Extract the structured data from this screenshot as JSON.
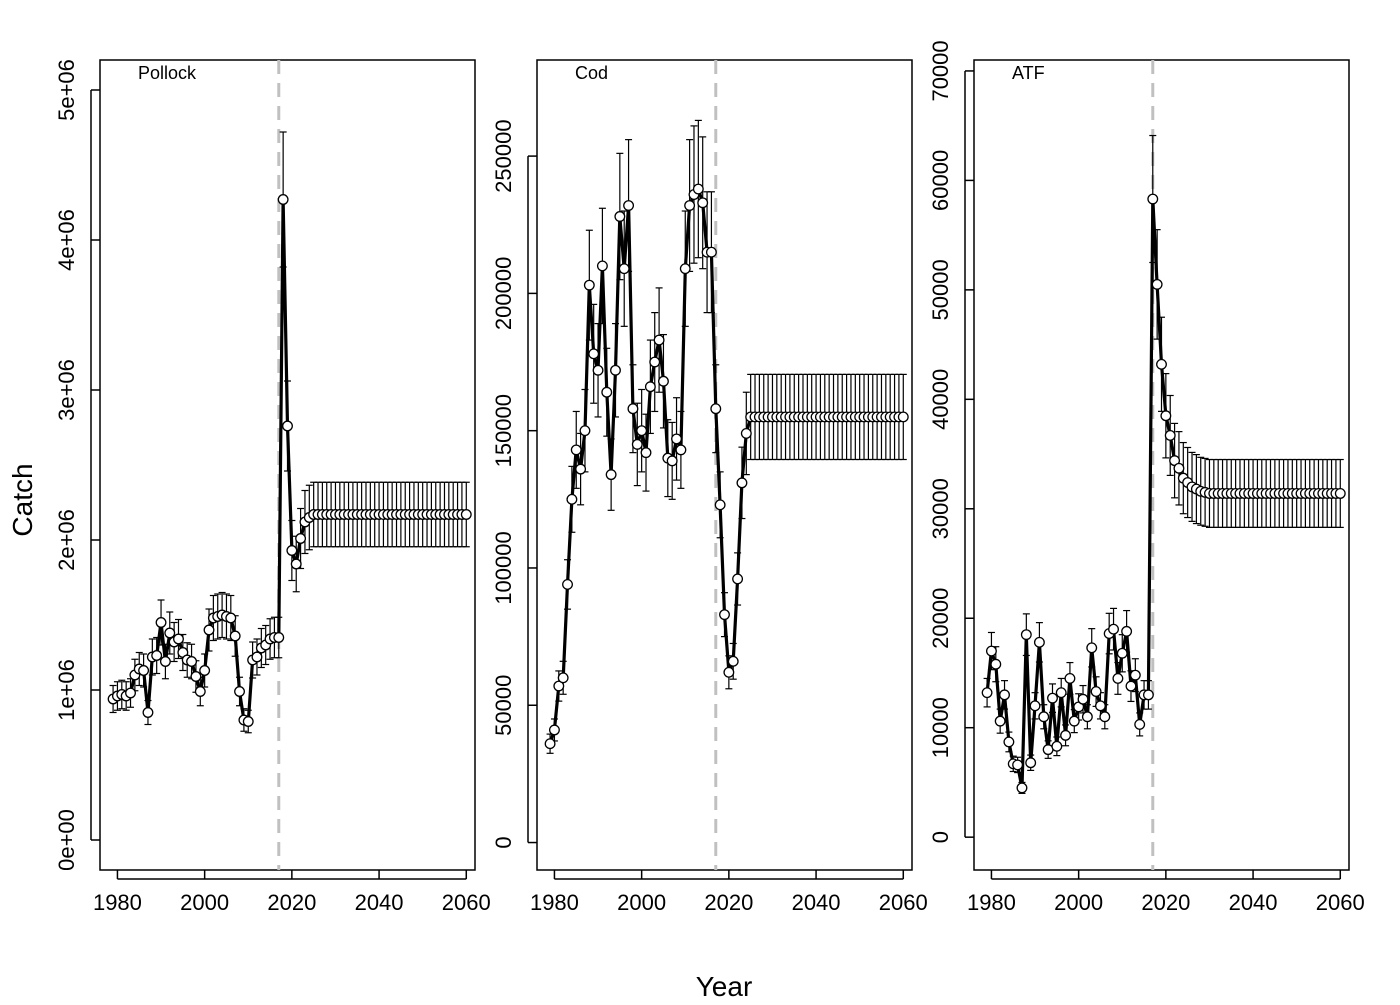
{
  "figure": {
    "ylabel": "Catch",
    "xlabel": "Year",
    "projection_start_year": 2017
  },
  "colors": {
    "line": "#000000",
    "marker_fill": "#ffffff",
    "reference_line": "#c0c0c0"
  },
  "chart_data": [
    {
      "type": "line",
      "title": "Pollock",
      "xlim": [
        1976,
        2062
      ],
      "ylim": [
        -200000,
        5200000
      ],
      "x_ticks": [
        1980,
        2000,
        2020,
        2040,
        2060
      ],
      "y_ticks": [
        0,
        1000000,
        2000000,
        3000000,
        4000000,
        5000000
      ],
      "y_tick_labels": [
        "0e+00",
        "1e+06",
        "2e+06",
        "3e+06",
        "4e+06",
        "5e+06"
      ],
      "reference_line_x": 2017,
      "x": [
        1979,
        1980,
        1981,
        1982,
        1983,
        1984,
        1985,
        1986,
        1987,
        1988,
        1989,
        1990,
        1991,
        1992,
        1993,
        1994,
        1995,
        1996,
        1997,
        1998,
        1999,
        2000,
        2001,
        2002,
        2003,
        2004,
        2005,
        2006,
        2007,
        2008,
        2009,
        2010,
        2011,
        2012,
        2013,
        2014,
        2015,
        2016,
        2017,
        2018,
        2019,
        2020,
        2021,
        2022,
        2023,
        2024,
        2025,
        2026,
        2027,
        2028,
        2029,
        2030,
        2031,
        2032,
        2033,
        2034,
        2035,
        2036,
        2037,
        2038,
        2039,
        2040,
        2041,
        2042,
        2043,
        2044,
        2045,
        2046,
        2047,
        2048,
        2049,
        2050,
        2051,
        2052,
        2053,
        2054,
        2055,
        2056,
        2057,
        2058,
        2059,
        2060
      ],
      "y": [
        940000,
        960000,
        970000,
        960000,
        980000,
        1100000,
        1140000,
        1130000,
        850000,
        1220000,
        1230000,
        1450000,
        1190000,
        1380000,
        1320000,
        1340000,
        1250000,
        1200000,
        1190000,
        1090000,
        990000,
        1130000,
        1400000,
        1480000,
        1490000,
        1500000,
        1490000,
        1480000,
        1360000,
        990000,
        800000,
        790000,
        1200000,
        1220000,
        1280000,
        1300000,
        1340000,
        1350000,
        1350000,
        4270000,
        2760000,
        1930000,
        1840000,
        2010000,
        2120000,
        2150000,
        2170000,
        2170000,
        2170000,
        2170000,
        2170000,
        2170000,
        2170000,
        2170000,
        2170000,
        2170000,
        2170000,
        2170000,
        2170000,
        2170000,
        2170000,
        2170000,
        2170000,
        2170000,
        2170000,
        2170000,
        2170000,
        2170000,
        2170000,
        2170000,
        2170000,
        2170000,
        2170000,
        2170000,
        2170000,
        2170000,
        2170000,
        2170000,
        2170000,
        2170000,
        2170000,
        2170000
      ],
      "error": [
        90000,
        95000,
        95000,
        95000,
        95000,
        105000,
        110000,
        110000,
        80000,
        120000,
        120000,
        150000,
        115000,
        140000,
        130000,
        130000,
        120000,
        115000,
        115000,
        105000,
        95000,
        110000,
        140000,
        150000,
        150000,
        150000,
        150000,
        150000,
        135000,
        95000,
        75000,
        75000,
        120000,
        120000,
        130000,
        130000,
        135000,
        135000,
        135000,
        450000,
        300000,
        200000,
        185000,
        200000,
        210000,
        215000,
        215000,
        215000,
        215000,
        215000,
        215000,
        215000,
        215000,
        215000,
        215000,
        215000,
        215000,
        215000,
        215000,
        215000,
        215000,
        215000,
        215000,
        215000,
        215000,
        215000,
        215000,
        215000,
        215000,
        215000,
        215000,
        215000,
        215000,
        215000,
        215000,
        215000,
        215000,
        215000,
        215000,
        215000,
        215000,
        215000
      ]
    },
    {
      "type": "line",
      "title": "Cod",
      "xlim": [
        1976,
        2062
      ],
      "ylim": [
        -10000,
        285000
      ],
      "x_ticks": [
        1980,
        2000,
        2020,
        2040,
        2060
      ],
      "y_ticks": [
        0,
        50000,
        100000,
        150000,
        200000,
        250000
      ],
      "y_tick_labels": [
        "0",
        "50000",
        "100000",
        "150000",
        "200000",
        "250000"
      ],
      "reference_line_x": 2017,
      "x": [
        1979,
        1980,
        1981,
        1982,
        1983,
        1984,
        1985,
        1986,
        1987,
        1988,
        1989,
        1990,
        1991,
        1992,
        1993,
        1994,
        1995,
        1996,
        1997,
        1998,
        1999,
        2000,
        2001,
        2002,
        2003,
        2004,
        2005,
        2006,
        2007,
        2008,
        2009,
        2010,
        2011,
        2012,
        2013,
        2014,
        2015,
        2016,
        2017,
        2018,
        2019,
        2020,
        2021,
        2022,
        2023,
        2024,
        2025,
        2026,
        2027,
        2028,
        2029,
        2030,
        2031,
        2032,
        2033,
        2034,
        2035,
        2036,
        2037,
        2038,
        2039,
        2040,
        2041,
        2042,
        2043,
        2044,
        2045,
        2046,
        2047,
        2048,
        2049,
        2050,
        2051,
        2052,
        2053,
        2054,
        2055,
        2056,
        2057,
        2058,
        2059,
        2060
      ],
      "y": [
        36000,
        41000,
        57000,
        60000,
        94000,
        125000,
        143000,
        136000,
        150000,
        203000,
        178000,
        172000,
        210000,
        164000,
        134000,
        172000,
        228000,
        209000,
        232000,
        158000,
        145000,
        150000,
        142000,
        166000,
        175000,
        183000,
        168000,
        140000,
        139000,
        147000,
        143000,
        209000,
        232000,
        236000,
        238000,
        233000,
        215000,
        215000,
        158000,
        123000,
        83000,
        62000,
        66000,
        96000,
        131000,
        149000,
        155000,
        155000,
        155000,
        155000,
        155000,
        155000,
        155000,
        155000,
        155000,
        155000,
        155000,
        155000,
        155000,
        155000,
        155000,
        155000,
        155000,
        155000,
        155000,
        155000,
        155000,
        155000,
        155000,
        155000,
        155000,
        155000,
        155000,
        155000,
        155000,
        155000,
        155000,
        155000,
        155000,
        155000,
        155000,
        155000
      ],
      "error": [
        3500,
        4000,
        5500,
        6000,
        9000,
        12000,
        14000,
        13000,
        15000,
        20000,
        18000,
        17000,
        21000,
        16000,
        13000,
        17000,
        23000,
        21000,
        24000,
        16000,
        15000,
        15000,
        14000,
        17000,
        18000,
        19000,
        17000,
        14000,
        14000,
        15000,
        14000,
        21000,
        24000,
        25000,
        25000,
        24000,
        22000,
        22000,
        16000,
        12000,
        8000,
        6000,
        6500,
        9500,
        13000,
        15000,
        15500,
        15500,
        15500,
        15500,
        15500,
        15500,
        15500,
        15500,
        15500,
        15500,
        15500,
        15500,
        15500,
        15500,
        15500,
        15500,
        15500,
        15500,
        15500,
        15500,
        15500,
        15500,
        15500,
        15500,
        15500,
        15500,
        15500,
        15500,
        15500,
        15500,
        15500,
        15500,
        15500,
        15500,
        15500,
        15500
      ]
    },
    {
      "type": "line",
      "title": "ATF",
      "xlim": [
        1976,
        2062
      ],
      "ylim": [
        -3000,
        71000
      ],
      "x_ticks": [
        1980,
        2000,
        2020,
        2040,
        2060
      ],
      "y_ticks": [
        0,
        10000,
        20000,
        30000,
        40000,
        50000,
        60000,
        70000
      ],
      "y_tick_labels": [
        "0",
        "10000",
        "20000",
        "30000",
        "40000",
        "50000",
        "60000",
        "70000"
      ],
      "reference_line_x": 2017,
      "x": [
        1979,
        1980,
        1981,
        1982,
        1983,
        1984,
        1985,
        1986,
        1987,
        1988,
        1989,
        1990,
        1991,
        1992,
        1993,
        1994,
        1995,
        1996,
        1997,
        1998,
        1999,
        2000,
        2001,
        2002,
        2003,
        2004,
        2005,
        2006,
        2007,
        2008,
        2009,
        2010,
        2011,
        2012,
        2013,
        2014,
        2015,
        2016,
        2017,
        2018,
        2019,
        2020,
        2021,
        2022,
        2023,
        2024,
        2025,
        2026,
        2027,
        2028,
        2029,
        2030,
        2031,
        2032,
        2033,
        2034,
        2035,
        2036,
        2037,
        2038,
        2039,
        2040,
        2041,
        2042,
        2043,
        2044,
        2045,
        2046,
        2047,
        2048,
        2049,
        2050,
        2051,
        2052,
        2053,
        2054,
        2055,
        2056,
        2057,
        2058,
        2059,
        2060
      ],
      "y": [
        13200,
        17000,
        15800,
        10600,
        13000,
        8700,
        6700,
        6600,
        4500,
        18500,
        6800,
        12000,
        17800,
        11000,
        8000,
        12700,
        8300,
        13200,
        9300,
        14500,
        10600,
        11900,
        12600,
        11000,
        17300,
        13300,
        12000,
        11000,
        18600,
        19000,
        14500,
        16800,
        18800,
        13800,
        14800,
        10300,
        13000,
        13000,
        58300,
        50500,
        43200,
        38500,
        36700,
        34400,
        33700,
        32800,
        32400,
        32000,
        31800,
        31600,
        31500,
        31400,
        31400,
        31400,
        31400,
        31400,
        31400,
        31400,
        31400,
        31400,
        31400,
        31400,
        31400,
        31400,
        31400,
        31400,
        31400,
        31400,
        31400,
        31400,
        31400,
        31400,
        31400,
        31400,
        31400,
        31400,
        31400,
        31400,
        31400,
        31400,
        31400,
        31400
      ],
      "error": [
        1300,
        1700,
        1600,
        1100,
        1300,
        900,
        700,
        700,
        500,
        1900,
        700,
        1200,
        1800,
        1100,
        800,
        1300,
        850,
        1300,
        950,
        1450,
        1050,
        1200,
        1250,
        1100,
        1750,
        1350,
        1200,
        1100,
        1850,
        1900,
        1450,
        1700,
        1900,
        1400,
        1500,
        1050,
        1300,
        1300,
        5800,
        5000,
        4300,
        3850,
        3650,
        3400,
        3350,
        3250,
        3200,
        3150,
        3150,
        3100,
        3100,
        3100,
        3100,
        3100,
        3100,
        3100,
        3100,
        3100,
        3100,
        3100,
        3100,
        3100,
        3100,
        3100,
        3100,
        3100,
        3100,
        3100,
        3100,
        3100,
        3100,
        3100,
        3100,
        3100,
        3100,
        3100,
        3100,
        3100,
        3100,
        3100,
        3100,
        3100
      ]
    }
  ]
}
